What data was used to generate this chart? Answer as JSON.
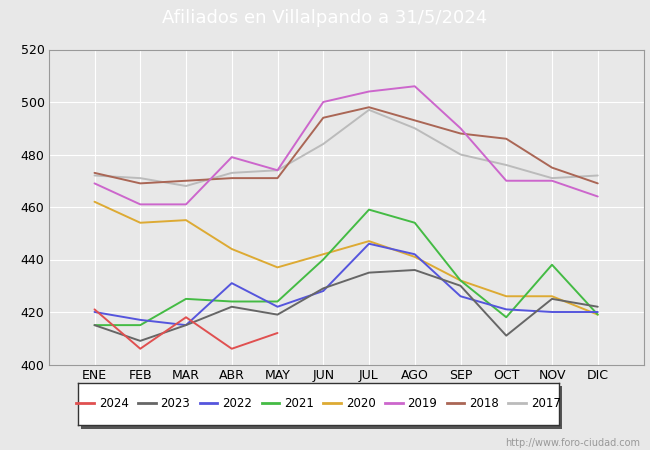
{
  "title": "Afiliados en Villalpando a 31/5/2024",
  "title_bg_color": "#4a8fd4",
  "title_text_color": "white",
  "watermark": "http://www.foro-ciudad.com",
  "months": [
    "ENE",
    "FEB",
    "MAR",
    "ABR",
    "MAY",
    "JUN",
    "JUL",
    "AGO",
    "SEP",
    "OCT",
    "NOV",
    "DIC"
  ],
  "ylim": [
    400,
    520
  ],
  "yticks": [
    400,
    420,
    440,
    460,
    480,
    500,
    520
  ],
  "series": {
    "2024": {
      "color": "#e05050",
      "data": [
        421,
        406,
        418,
        406,
        412,
        null,
        null,
        null,
        null,
        null,
        null,
        null
      ]
    },
    "2023": {
      "color": "#666666",
      "data": [
        415,
        409,
        415,
        422,
        419,
        429,
        435,
        436,
        430,
        411,
        425,
        422
      ]
    },
    "2022": {
      "color": "#5555dd",
      "data": [
        420,
        417,
        415,
        431,
        422,
        428,
        446,
        442,
        426,
        421,
        420,
        420
      ]
    },
    "2021": {
      "color": "#44bb44",
      "data": [
        415,
        415,
        425,
        424,
        424,
        440,
        459,
        454,
        432,
        418,
        438,
        419
      ]
    },
    "2020": {
      "color": "#ddaa33",
      "data": [
        462,
        454,
        455,
        444,
        437,
        442,
        447,
        441,
        432,
        426,
        426,
        419
      ]
    },
    "2019": {
      "color": "#cc66cc",
      "data": [
        469,
        461,
        461,
        479,
        474,
        500,
        504,
        506,
        490,
        470,
        470,
        464
      ]
    },
    "2018": {
      "color": "#aa6655",
      "data": [
        473,
        469,
        470,
        471,
        471,
        494,
        498,
        493,
        488,
        486,
        475,
        469
      ]
    },
    "2017": {
      "color": "#bbbbbb",
      "data": [
        472,
        471,
        468,
        473,
        474,
        484,
        497,
        490,
        480,
        476,
        471,
        472
      ]
    }
  },
  "legend_order": [
    "2024",
    "2023",
    "2022",
    "2021",
    "2020",
    "2019",
    "2018",
    "2017"
  ],
  "fig_bg_color": "#e8e8e8",
  "plot_bg_color": "#e8e8e8",
  "inner_plot_bg": "#e8e8e8",
  "grid_color": "#ffffff",
  "title_fontsize": 13,
  "tick_fontsize": 9,
  "legend_fontsize": 8.5
}
